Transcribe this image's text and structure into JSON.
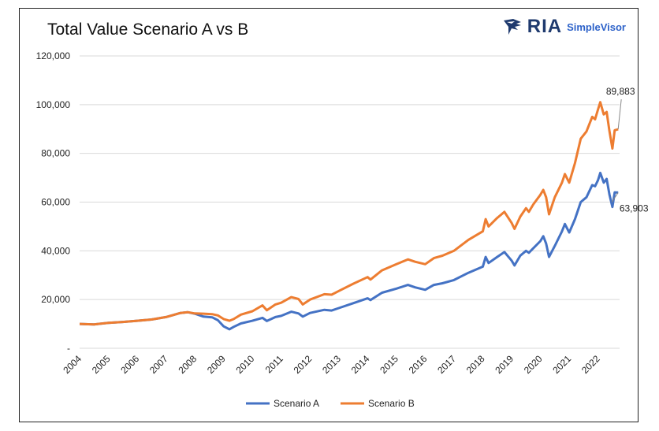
{
  "chart_data": {
    "type": "line",
    "title": "Total Value Scenario A vs B",
    "brand": {
      "name": "RIA",
      "sub": "SimpleVisor"
    },
    "y_ticks": [
      {
        "v": 0,
        "label": "-"
      },
      {
        "v": 20000,
        "label": "20,000"
      },
      {
        "v": 40000,
        "label": "40,000"
      },
      {
        "v": 60000,
        "label": "60,000"
      },
      {
        "v": 80000,
        "label": "80,000"
      },
      {
        "v": 100000,
        "label": "100,000"
      },
      {
        "v": 120000,
        "label": "120,000"
      }
    ],
    "ylim": [
      0,
      120000
    ],
    "xlim": [
      2004.0,
      2022.75
    ],
    "x_ticks": [
      "2004",
      "2005",
      "2006",
      "2007",
      "2008",
      "2009",
      "2010",
      "2011",
      "2012",
      "2013",
      "2014",
      "2015",
      "2016",
      "2017",
      "2018",
      "2019",
      "2020",
      "2021",
      "2022"
    ],
    "grid": "horizontal",
    "legend_position": "bottom",
    "annotations": [
      {
        "text": "89,883",
        "series": "Scenario B"
      },
      {
        "text": "63,903",
        "series": "Scenario A"
      }
    ],
    "series": [
      {
        "name": "Scenario A",
        "color": "#4472c4",
        "points": [
          [
            2004.0,
            10000
          ],
          [
            2004.5,
            9800
          ],
          [
            2005.0,
            10400
          ],
          [
            2005.5,
            10800
          ],
          [
            2006.0,
            11300
          ],
          [
            2006.5,
            11800
          ],
          [
            2007.0,
            12800
          ],
          [
            2007.5,
            14500
          ],
          [
            2007.75,
            14800
          ],
          [
            2008.0,
            14200
          ],
          [
            2008.3,
            13000
          ],
          [
            2008.6,
            12700
          ],
          [
            2008.8,
            11500
          ],
          [
            2009.0,
            9000
          ],
          [
            2009.2,
            7800
          ],
          [
            2009.35,
            8800
          ],
          [
            2009.6,
            10200
          ],
          [
            2010.0,
            11300
          ],
          [
            2010.35,
            12500
          ],
          [
            2010.5,
            11200
          ],
          [
            2010.8,
            12800
          ],
          [
            2011.0,
            13300
          ],
          [
            2011.35,
            15000
          ],
          [
            2011.6,
            14300
          ],
          [
            2011.75,
            13000
          ],
          [
            2012.0,
            14500
          ],
          [
            2012.5,
            15800
          ],
          [
            2012.75,
            15500
          ],
          [
            2013.0,
            16500
          ],
          [
            2013.5,
            18500
          ],
          [
            2014.0,
            20500
          ],
          [
            2014.1,
            19800
          ],
          [
            2014.5,
            22800
          ],
          [
            2015.0,
            24500
          ],
          [
            2015.4,
            26000
          ],
          [
            2015.65,
            25000
          ],
          [
            2016.0,
            24000
          ],
          [
            2016.3,
            26000
          ],
          [
            2016.6,
            26700
          ],
          [
            2017.0,
            28000
          ],
          [
            2017.5,
            31000
          ],
          [
            2018.0,
            33500
          ],
          [
            2018.1,
            37500
          ],
          [
            2018.2,
            35000
          ],
          [
            2018.5,
            37500
          ],
          [
            2018.75,
            39500
          ],
          [
            2019.0,
            36000
          ],
          [
            2019.1,
            34000
          ],
          [
            2019.3,
            38000
          ],
          [
            2019.5,
            40000
          ],
          [
            2019.6,
            39200
          ],
          [
            2019.75,
            41000
          ],
          [
            2020.0,
            44000
          ],
          [
            2020.1,
            46000
          ],
          [
            2020.2,
            43000
          ],
          [
            2020.3,
            37500
          ],
          [
            2020.5,
            42000
          ],
          [
            2020.75,
            48000
          ],
          [
            2020.85,
            51000
          ],
          [
            2021.0,
            47500
          ],
          [
            2021.2,
            53000
          ],
          [
            2021.4,
            60000
          ],
          [
            2021.6,
            62000
          ],
          [
            2021.8,
            67000
          ],
          [
            2021.9,
            66500
          ],
          [
            2022.0,
            69000
          ],
          [
            2022.08,
            72000
          ],
          [
            2022.2,
            68000
          ],
          [
            2022.3,
            69500
          ],
          [
            2022.4,
            63000
          ],
          [
            2022.5,
            58000
          ],
          [
            2022.58,
            64000
          ],
          [
            2022.7,
            63903
          ]
        ]
      },
      {
        "name": "Scenario B",
        "color": "#ed7d31",
        "points": [
          [
            2004.0,
            10000
          ],
          [
            2004.5,
            9800
          ],
          [
            2005.0,
            10400
          ],
          [
            2005.5,
            10800
          ],
          [
            2006.0,
            11300
          ],
          [
            2006.5,
            11800
          ],
          [
            2007.0,
            12800
          ],
          [
            2007.5,
            14500
          ],
          [
            2007.75,
            14800
          ],
          [
            2008.0,
            14300
          ],
          [
            2008.3,
            14200
          ],
          [
            2008.6,
            14000
          ],
          [
            2008.8,
            13500
          ],
          [
            2009.0,
            12000
          ],
          [
            2009.2,
            11300
          ],
          [
            2009.35,
            12000
          ],
          [
            2009.6,
            13800
          ],
          [
            2010.0,
            15200
          ],
          [
            2010.35,
            17600
          ],
          [
            2010.5,
            15600
          ],
          [
            2010.8,
            18000
          ],
          [
            2011.0,
            18700
          ],
          [
            2011.35,
            21000
          ],
          [
            2011.6,
            20200
          ],
          [
            2011.75,
            18000
          ],
          [
            2012.0,
            20000
          ],
          [
            2012.5,
            22200
          ],
          [
            2012.75,
            22000
          ],
          [
            2013.0,
            23500
          ],
          [
            2013.5,
            26500
          ],
          [
            2014.0,
            29200
          ],
          [
            2014.1,
            28200
          ],
          [
            2014.5,
            32000
          ],
          [
            2015.0,
            34500
          ],
          [
            2015.4,
            36500
          ],
          [
            2015.65,
            35500
          ],
          [
            2016.0,
            34500
          ],
          [
            2016.3,
            37000
          ],
          [
            2016.6,
            38000
          ],
          [
            2017.0,
            40000
          ],
          [
            2017.5,
            44500
          ],
          [
            2018.0,
            48000
          ],
          [
            2018.1,
            53000
          ],
          [
            2018.2,
            50000
          ],
          [
            2018.5,
            53500
          ],
          [
            2018.75,
            56000
          ],
          [
            2019.0,
            51500
          ],
          [
            2019.1,
            49000
          ],
          [
            2019.3,
            54000
          ],
          [
            2019.5,
            57500
          ],
          [
            2019.6,
            56000
          ],
          [
            2019.75,
            59000
          ],
          [
            2020.0,
            63000
          ],
          [
            2020.1,
            65000
          ],
          [
            2020.2,
            62000
          ],
          [
            2020.3,
            55000
          ],
          [
            2020.5,
            62000
          ],
          [
            2020.75,
            68000
          ],
          [
            2020.85,
            71500
          ],
          [
            2021.0,
            68000
          ],
          [
            2021.2,
            76000
          ],
          [
            2021.4,
            86000
          ],
          [
            2021.6,
            89000
          ],
          [
            2021.8,
            95000
          ],
          [
            2021.9,
            94000
          ],
          [
            2022.0,
            98000
          ],
          [
            2022.08,
            101000
          ],
          [
            2022.2,
            96000
          ],
          [
            2022.3,
            97000
          ],
          [
            2022.4,
            89000
          ],
          [
            2022.5,
            82000
          ],
          [
            2022.58,
            89500
          ],
          [
            2022.7,
            89883
          ]
        ]
      }
    ]
  }
}
